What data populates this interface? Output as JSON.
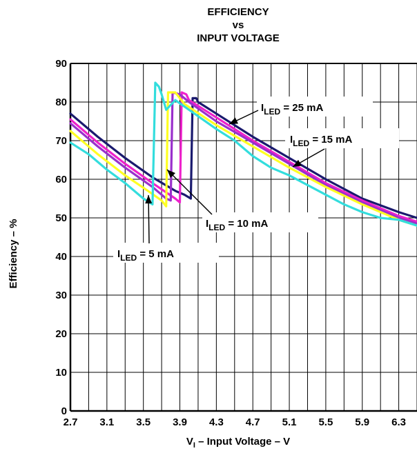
{
  "chart_data": {
    "type": "line",
    "title": [
      "EFFICIENCY",
      "vs",
      "INPUT VOLTAGE"
    ],
    "xlabel": {
      "prefix": "V",
      "sub": "I",
      "suffix": " – Input Voltage – V"
    },
    "ylabel": "Efficiency – %",
    "xlim": [
      2.7,
      6.5
    ],
    "ylim": [
      0,
      90
    ],
    "x_ticks": [
      "2.7",
      "3.1",
      "3.5",
      "3.9",
      "4.3",
      "4.7",
      "5.1",
      "5.5",
      "5.9",
      "6.3"
    ],
    "y_ticks": [
      "0",
      "10",
      "20",
      "30",
      "40",
      "50",
      "60",
      "70",
      "80",
      "90"
    ],
    "grid": true,
    "series": [
      {
        "name": "ILED = 25 mA",
        "color": "#1a1a6e",
        "points": [
          [
            2.7,
            77
          ],
          [
            3.0,
            71
          ],
          [
            3.3,
            65.5
          ],
          [
            3.6,
            60.5
          ],
          [
            3.85,
            57
          ],
          [
            3.95,
            56
          ],
          [
            4.02,
            55
          ],
          [
            4.04,
            81
          ],
          [
            4.08,
            81
          ],
          [
            4.1,
            80
          ],
          [
            4.3,
            77
          ],
          [
            4.7,
            71
          ],
          [
            5.1,
            65.5
          ],
          [
            5.5,
            60
          ],
          [
            5.9,
            55
          ],
          [
            6.3,
            51.5
          ],
          [
            6.5,
            50
          ]
        ]
      },
      {
        "name": "",
        "color": "#ee22cc",
        "points": [
          [
            2.7,
            75.5
          ],
          [
            3.0,
            69.5
          ],
          [
            3.3,
            64
          ],
          [
            3.6,
            59
          ],
          [
            3.85,
            55
          ],
          [
            3.9,
            54
          ],
          [
            3.92,
            82.5
          ],
          [
            3.97,
            82
          ],
          [
            4.0,
            80.5
          ],
          [
            4.3,
            76
          ],
          [
            4.7,
            70
          ],
          [
            5.1,
            64.5
          ],
          [
            5.5,
            59
          ],
          [
            5.9,
            54.5
          ],
          [
            6.3,
            50.5
          ],
          [
            6.5,
            49
          ]
        ]
      },
      {
        "name": "ILED = 15 mA",
        "color": "#9a30cc",
        "points": [
          [
            2.7,
            74.5
          ],
          [
            3.0,
            68.5
          ],
          [
            3.3,
            63
          ],
          [
            3.6,
            58
          ],
          [
            3.75,
            55
          ],
          [
            3.8,
            54.5
          ],
          [
            3.82,
            82.5
          ],
          [
            3.9,
            82
          ],
          [
            4.0,
            80
          ],
          [
            4.3,
            75
          ],
          [
            4.7,
            69.5
          ],
          [
            5.1,
            64
          ],
          [
            5.5,
            58.5
          ],
          [
            5.9,
            54
          ],
          [
            6.3,
            50
          ],
          [
            6.5,
            48.5
          ]
        ]
      },
      {
        "name": "ILED = 10 mA",
        "color": "#ffff22",
        "points": [
          [
            2.7,
            72.5
          ],
          [
            3.0,
            66.5
          ],
          [
            3.3,
            61
          ],
          [
            3.55,
            57
          ],
          [
            3.7,
            54.5
          ],
          [
            3.75,
            53
          ],
          [
            3.77,
            82.5
          ],
          [
            3.85,
            82.5
          ],
          [
            3.95,
            79.5
          ],
          [
            4.3,
            74
          ],
          [
            4.7,
            68.5
          ],
          [
            5.1,
            63
          ],
          [
            5.5,
            58
          ],
          [
            5.9,
            53.5
          ],
          [
            6.3,
            49.5
          ],
          [
            6.5,
            48
          ]
        ]
      },
      {
        "name": "ILED = 5 mA",
        "color": "#33dddd",
        "points": [
          [
            2.7,
            69.5
          ],
          [
            2.9,
            66.5
          ],
          [
            3.1,
            62.5
          ],
          [
            3.3,
            59
          ],
          [
            3.5,
            55
          ],
          [
            3.6,
            53.5
          ],
          [
            3.63,
            85
          ],
          [
            3.67,
            84
          ],
          [
            3.7,
            82
          ],
          [
            3.75,
            78
          ],
          [
            3.85,
            80.5
          ],
          [
            4.0,
            78
          ],
          [
            4.3,
            73
          ],
          [
            4.5,
            70
          ],
          [
            4.7,
            66
          ],
          [
            4.9,
            63
          ],
          [
            5.1,
            61
          ],
          [
            5.3,
            58.5
          ],
          [
            5.5,
            56
          ],
          [
            5.7,
            53.5
          ],
          [
            5.9,
            51.5
          ],
          [
            6.1,
            50
          ],
          [
            6.3,
            49.5
          ],
          [
            6.5,
            48
          ]
        ]
      }
    ],
    "annotations": [
      {
        "prefix": "I",
        "sub": "LED",
        "suffix": " = 25 mA"
      },
      {
        "prefix": "I",
        "sub": "LED",
        "suffix": " = 15 mA"
      },
      {
        "prefix": "I",
        "sub": "LED",
        "suffix": " = 10 mA"
      },
      {
        "prefix": "I",
        "sub": "LED",
        "suffix": " = 5 mA"
      }
    ]
  }
}
